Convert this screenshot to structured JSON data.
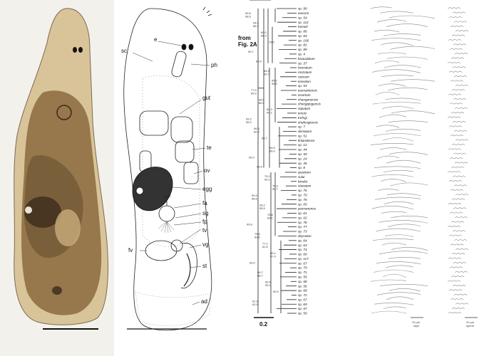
{
  "anatomy_labels": {
    "e": "e",
    "sc": "sc",
    "ph": "ph",
    "gut": "gut",
    "te": "te",
    "ov": "ov",
    "egg": "egg",
    "fa": "fa",
    "sg": "sg",
    "fp": "fp",
    "tv": "tv",
    "fv": "fv",
    "vg": "vg",
    "st": "st",
    "ad": "ad"
  },
  "tree": {
    "from_label": "from\nFig. 2A",
    "scale_label": "0.2",
    "stylet_scale": "20 µm\nstyle",
    "sperm_scale": "20 µm\nsperm",
    "taxa": [
      "sp. 90",
      "eusrum",
      "sp. 54",
      "sp. 112",
      "hemeli",
      "sp. 86",
      "sp. 83",
      "sp. 106",
      "sp. 82",
      "sp. 89",
      "sp. 4",
      "bicaudatum",
      "sp. 37",
      "fasciatum",
      "rostratum",
      "retorum",
      "tenedum",
      "sp. 53",
      "tasmaniensis",
      "incertum",
      "changanensis",
      "chongqingensis",
      "stipatum",
      "tenuis",
      "trefngi",
      "shufengiensis",
      "sp. 7",
      "dentatum",
      "sp. 51",
      "finlandense",
      "sp. 12",
      "sp. 44",
      "sp. 50",
      "sp. 24",
      "sp. 35",
      "sp. 8",
      "quantum",
      "sulai",
      "bicolor",
      "clavatum",
      "sp. 75",
      "sp. 70",
      "sp. 76",
      "sp. 65",
      "poznanense",
      "sp. 61",
      "sp. 62",
      "sp. 78",
      "sp. 77",
      "sp. 73",
      "deysoton",
      "sp. 64",
      "sp. 63",
      "sp. 74",
      "sp. 60",
      "sp. 117",
      "sp. 67",
      "sp. 79",
      "sp. 71",
      "sp. 55",
      "sp. 58",
      "sp. 56",
      "sp. 68",
      "sp. 72",
      "sp. 67",
      "sp. 69",
      "sp. 57",
      "sp. 59"
    ],
    "support_values": [
      "99.8 98.8",
      "94.0 66.3",
      "99.0 98.4",
      "79.0",
      "99.7",
      "80.0",
      "64.4 60.7",
      "95.2 59.0",
      "77.0 59.0",
      "96.5 80.0",
      "84.3 94.2",
      "99.2 96.0",
      "96.3 62.5",
      "54.7",
      "99.5 96.0",
      "95.0",
      "99.9",
      "79.2 99.1",
      "75.9 99.7",
      "59.9 98.6",
      "28.2 55.5",
      "75.8 69.1",
      "99.8",
      "79.9 63.0",
      "77.2 61.6",
      "99.1 97.4",
      "99.0",
      "99.7 68.7",
      "99.9 99.1",
      "90.0",
      "61.9 61.0"
    ]
  }
}
